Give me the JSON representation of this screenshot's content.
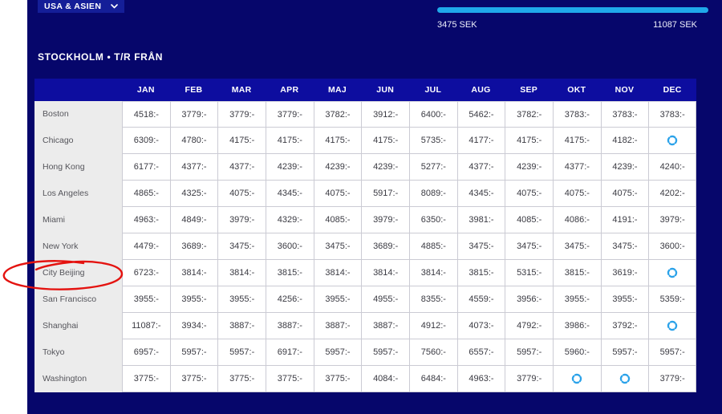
{
  "filter": {
    "label": "USA & ASIEN"
  },
  "slider": {
    "min_label": "3475 SEK",
    "max_label": "11087 SEK"
  },
  "title": "STOCKHOLM • T/R FRÅN",
  "table": {
    "months": [
      "JAN",
      "FEB",
      "MAR",
      "APR",
      "MAJ",
      "JUN",
      "JUL",
      "AUG",
      "SEP",
      "OKT",
      "NOV",
      "DEC"
    ],
    "rows": [
      {
        "city": "Boston",
        "prices": [
          "4518:-",
          "3779:-",
          "3779:-",
          "3779:-",
          "3782:-",
          "3912:-",
          "6400:-",
          "5462:-",
          "3782:-",
          "3783:-",
          "3783:-",
          "3783:-"
        ]
      },
      {
        "city": "Chicago",
        "prices": [
          "6309:-",
          "4780:-",
          "4175:-",
          "4175:-",
          "4175:-",
          "4175:-",
          "5735:-",
          "4177:-",
          "4175:-",
          "4175:-",
          "4182:-",
          null
        ]
      },
      {
        "city": "Hong Kong",
        "prices": [
          "6177:-",
          "4377:-",
          "4377:-",
          "4239:-",
          "4239:-",
          "4239:-",
          "5277:-",
          "4377:-",
          "4239:-",
          "4377:-",
          "4239:-",
          "4240:-"
        ]
      },
      {
        "city": "Los Angeles",
        "prices": [
          "4865:-",
          "4325:-",
          "4075:-",
          "4345:-",
          "4075:-",
          "5917:-",
          "8089:-",
          "4345:-",
          "4075:-",
          "4075:-",
          "4075:-",
          "4202:-"
        ]
      },
      {
        "city": "Miami",
        "prices": [
          "4963:-",
          "4849:-",
          "3979:-",
          "4329:-",
          "4085:-",
          "3979:-",
          "6350:-",
          "3981:-",
          "4085:-",
          "4086:-",
          "4191:-",
          "3979:-"
        ]
      },
      {
        "city": "New York",
        "prices": [
          "4479:-",
          "3689:-",
          "3475:-",
          "3600:-",
          "3475:-",
          "3689:-",
          "4885:-",
          "3475:-",
          "3475:-",
          "3475:-",
          "3475:-",
          "3600:-"
        ]
      },
      {
        "city": "City Beijing",
        "prices": [
          "6723:-",
          "3814:-",
          "3814:-",
          "3815:-",
          "3814:-",
          "3814:-",
          "3814:-",
          "3815:-",
          "5315:-",
          "3815:-",
          "3619:-",
          null
        ]
      },
      {
        "city": "San Francisco",
        "prices": [
          "3955:-",
          "3955:-",
          "3955:-",
          "4256:-",
          "3955:-",
          "4955:-",
          "8355:-",
          "4559:-",
          "3956:-",
          "3955:-",
          "3955:-",
          "5359:-"
        ]
      },
      {
        "city": "Shanghai",
        "prices": [
          "11087:-",
          "3934:-",
          "3887:-",
          "3887:-",
          "3887:-",
          "3887:-",
          "4912:-",
          "4073:-",
          "4792:-",
          "3986:-",
          "3792:-",
          null
        ]
      },
      {
        "city": "Tokyo",
        "prices": [
          "6957:-",
          "5957:-",
          "5957:-",
          "6917:-",
          "5957:-",
          "5957:-",
          "7560:-",
          "6557:-",
          "5957:-",
          "5960:-",
          "5957:-",
          "5957:-"
        ]
      },
      {
        "city": "Washington",
        "prices": [
          "3775:-",
          "3775:-",
          "3775:-",
          "3775:-",
          "3775:-",
          "4084:-",
          "6484:-",
          "4963:-",
          "3779:-",
          null,
          null,
          "3779:-"
        ]
      }
    ]
  },
  "icons": {
    "chevron_down": "chevron-down-icon",
    "loading_spinner": "loading-spinner-icon"
  },
  "colors": {
    "page_navy": "#06066b",
    "header_blue": "#0d0d9f",
    "dropdown_blue": "#141e98",
    "slider_blue": "#1fa8ea",
    "spinner_blue": "#2ba2e9",
    "city_column_bg": "#ececec",
    "annotation_red": "#e41310"
  }
}
